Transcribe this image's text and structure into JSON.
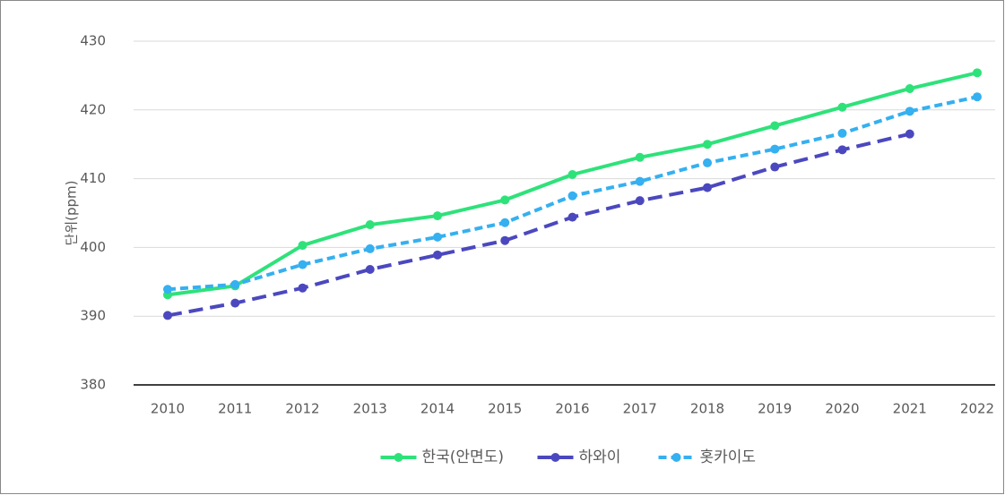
{
  "chart_data": {
    "type": "line",
    "y_label": "단위(ppm)",
    "categories": [
      "2010",
      "2011",
      "2012",
      "2013",
      "2014",
      "2015",
      "2016",
      "2017",
      "2018",
      "2019",
      "2020",
      "2021",
      "2022"
    ],
    "series": [
      {
        "name": "한국(안면도)",
        "color": "#2ee27a",
        "line_style": "solid",
        "values": [
          393.1,
          394.4,
          400.3,
          403.3,
          404.6,
          406.9,
          410.6,
          413.1,
          415.0,
          417.7,
          420.4,
          423.1,
          425.4
        ]
      },
      {
        "name": "하와이",
        "color": "#4b48bf",
        "line_style": "dashed",
        "values": [
          390.1,
          391.9,
          394.1,
          396.8,
          398.9,
          401.0,
          404.4,
          406.8,
          408.7,
          411.7,
          414.2,
          416.5,
          null
        ]
      },
      {
        "name": "홋카이도",
        "color": "#35b0f0",
        "line_style": "short-dashed",
        "values": [
          393.9,
          394.6,
          397.5,
          399.8,
          401.5,
          403.6,
          407.5,
          409.6,
          412.3,
          414.3,
          416.6,
          419.8,
          421.9
        ]
      }
    ],
    "ylim": [
      380,
      430
    ],
    "yticks": [
      380,
      390,
      400,
      410,
      420,
      430
    ],
    "grid": true,
    "legend": "bottom"
  }
}
